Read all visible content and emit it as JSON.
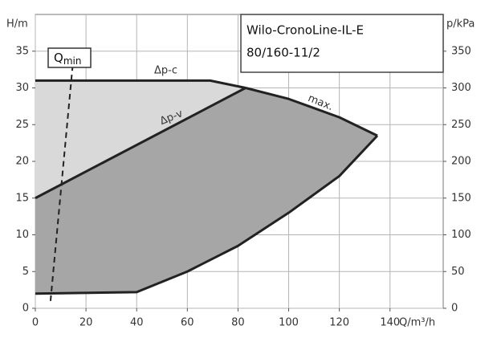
{
  "chart_data": {
    "type": "pump-curve",
    "title": "Wilo-CronoLine-IL-E",
    "subtitle": "80/160-11/2",
    "xlabel": "Q/m³/h",
    "ylabel": "H/m",
    "y2label": "p/kPa",
    "xlim": [
      0,
      161
    ],
    "ylim": [
      0,
      40
    ],
    "y2lim": [
      0,
      400
    ],
    "xticks": [
      0,
      20,
      40,
      60,
      80,
      100,
      120,
      140
    ],
    "yticks": [
      0,
      5,
      10,
      15,
      20,
      25,
      30,
      35
    ],
    "y2ticks": [
      0,
      50,
      100,
      150,
      200,
      250,
      300,
      350
    ],
    "grid": true,
    "fill_colors": [
      "#d9d9d9",
      "#a6a6a6"
    ],
    "series": [
      {
        "name": "Δp-c",
        "color": "#222222",
        "x": [
          0,
          69,
          83
        ],
        "values": [
          31,
          31,
          30
        ]
      },
      {
        "name": "Δp-v",
        "color": "#222222",
        "x": [
          0,
          83
        ],
        "values": [
          15,
          30
        ]
      },
      {
        "name": "max.",
        "color": "#222222",
        "x": [
          83,
          100,
          120,
          135
        ],
        "values": [
          30,
          28.5,
          26,
          23.5
        ]
      },
      {
        "color": "#222222",
        "x": [
          0,
          40,
          60,
          80,
          100,
          120,
          135
        ],
        "values": [
          2,
          2.2,
          5,
          8.5,
          13,
          18,
          23.5
        ]
      }
    ],
    "qmin": {
      "label": "Q",
      "sub": "min",
      "x": [
        6,
        15
      ],
      "values": [
        1,
        34
      ]
    }
  }
}
